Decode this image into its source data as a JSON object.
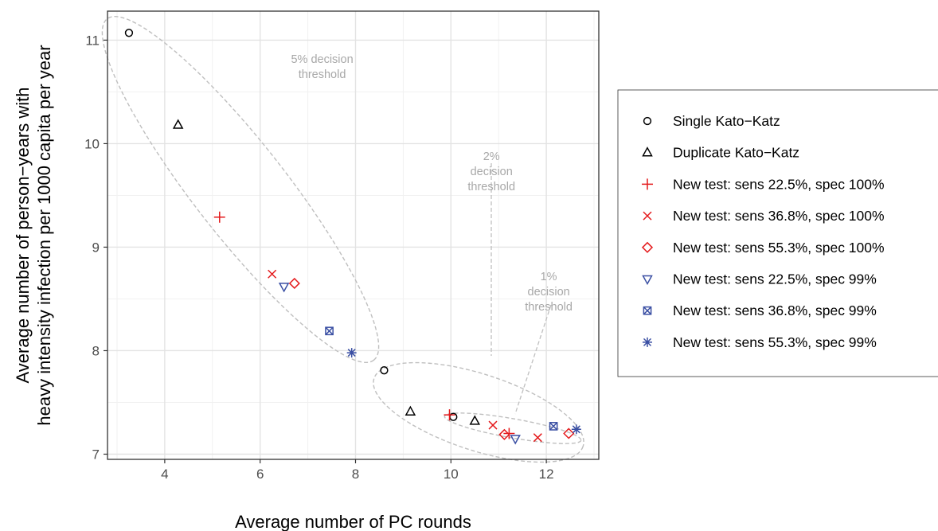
{
  "chart_data": {
    "type": "scatter",
    "xlabel": "Average number of PC rounds",
    "ylabel": [
      "Average number of person−years with",
      "heavy intensity infection per 1000 capita per year"
    ],
    "xlim": [
      2.8,
      13.1
    ],
    "ylim": [
      6.95,
      11.28
    ],
    "x_ticks": [
      4,
      6,
      8,
      10,
      12
    ],
    "y_ticks": [
      7,
      8,
      9,
      10,
      11
    ],
    "grid": true,
    "legend_position": "right",
    "series": [
      {
        "name": "Single Kato−Katz",
        "marker": "circle",
        "color": "#000000",
        "points": [
          [
            3.25,
            11.07
          ],
          [
            8.6,
            7.81
          ],
          [
            10.05,
            7.36
          ]
        ]
      },
      {
        "name": "Duplicate Kato−Katz",
        "marker": "triangle-up",
        "color": "#000000",
        "points": [
          [
            4.28,
            10.18
          ],
          [
            9.15,
            7.41
          ],
          [
            10.5,
            7.32
          ]
        ]
      },
      {
        "name": "New test: sens 22.5%, spec 100%",
        "marker": "plus",
        "color": "#e41a1c",
        "points": [
          [
            5.15,
            9.29
          ],
          [
            9.97,
            7.38
          ],
          [
            11.22,
            7.2
          ]
        ]
      },
      {
        "name": "New test: sens 36.8%, spec 100%",
        "marker": "cross",
        "color": "#e41a1c",
        "points": [
          [
            6.25,
            8.74
          ],
          [
            10.88,
            7.28
          ],
          [
            11.82,
            7.16
          ]
        ]
      },
      {
        "name": "New test: sens 55.3%, spec 100%",
        "marker": "diamond",
        "color": "#e41a1c",
        "points": [
          [
            6.72,
            8.65
          ],
          [
            11.12,
            7.19
          ],
          [
            12.47,
            7.2
          ]
        ]
      },
      {
        "name": "New test: sens 22.5%, spec 99%",
        "marker": "triangle-down",
        "color": "#3a4fa3",
        "points": [
          [
            6.5,
            8.62
          ],
          [
            11.35,
            7.15
          ]
        ]
      },
      {
        "name": "New test: sens 36.8%, spec 99%",
        "marker": "boxed-x",
        "color": "#3a4fa3",
        "points": [
          [
            7.45,
            8.19
          ],
          [
            12.15,
            7.27
          ]
        ]
      },
      {
        "name": "New test: sens 55.3%, spec 99%",
        "marker": "asterisk",
        "color": "#3a4fa3",
        "points": [
          [
            7.92,
            7.98
          ],
          [
            12.63,
            7.24
          ]
        ]
      }
    ],
    "annotations": [
      {
        "lines": [
          "5% decision",
          "threshold"
        ],
        "at": [
          7.3,
          10.78
        ]
      },
      {
        "lines": [
          "2%",
          "decision",
          "threshold"
        ],
        "at": [
          10.85,
          9.84
        ]
      },
      {
        "lines": [
          "1%",
          "decision",
          "threshold"
        ],
        "at": [
          12.05,
          8.68
        ]
      }
    ]
  }
}
